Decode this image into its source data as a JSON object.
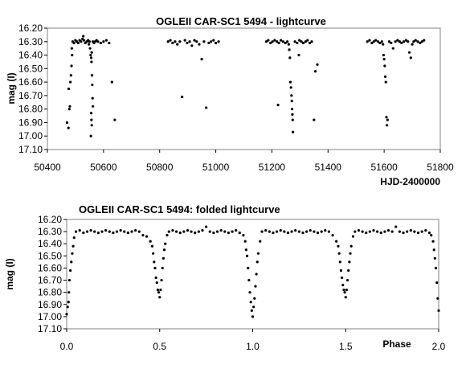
{
  "chart_data": [
    {
      "type": "scatter",
      "title": "OGLEII CAR-SC1 5494 - lightcurve",
      "xlabel": "HJD-2400000",
      "ylabel": "mag (I)",
      "xlim": [
        50400,
        51800
      ],
      "ylim": [
        16.2,
        17.1
      ],
      "y_inverted": true,
      "x_ticks": [
        "50400",
        "50600",
        "50800",
        "51000",
        "51200",
        "51400",
        "51600",
        "51800"
      ],
      "y_ticks": [
        "16.20",
        "16.30",
        "16.40",
        "16.50",
        "16.60",
        "16.70",
        "16.80",
        "16.90",
        "17.00",
        "17.10"
      ],
      "grid": false,
      "marker_color": "#000000",
      "points": [
        [
          50470,
          16.9
        ],
        [
          50475,
          16.94
        ],
        [
          50478,
          16.8
        ],
        [
          50480,
          16.78
        ],
        [
          50476,
          16.65
        ],
        [
          50482,
          16.6
        ],
        [
          50484,
          16.55
        ],
        [
          50486,
          16.48
        ],
        [
          50488,
          16.4
        ],
        [
          50487,
          16.35
        ],
        [
          50490,
          16.3
        ],
        [
          50495,
          16.31
        ],
        [
          50500,
          16.29
        ],
        [
          50505,
          16.3
        ],
        [
          50510,
          16.31
        ],
        [
          50515,
          16.29
        ],
        [
          50520,
          16.3
        ],
        [
          50525,
          16.28
        ],
        [
          50528,
          16.26
        ],
        [
          50530,
          16.29
        ],
        [
          50535,
          16.31
        ],
        [
          50540,
          16.3
        ],
        [
          50545,
          16.29
        ],
        [
          50548,
          16.32
        ],
        [
          50550,
          16.3
        ],
        [
          50552,
          16.35
        ],
        [
          50554,
          16.4
        ],
        [
          50556,
          16.42
        ],
        [
          50557,
          16.45
        ],
        [
          50558,
          16.38
        ],
        [
          50559,
          16.55
        ],
        [
          50560,
          16.62
        ],
        [
          50561,
          16.72
        ],
        [
          50562,
          16.78
        ],
        [
          50556,
          16.83
        ],
        [
          50557,
          16.88
        ],
        [
          50558,
          16.92
        ],
        [
          50555,
          17.0
        ],
        [
          50562,
          16.3
        ],
        [
          50566,
          16.31
        ],
        [
          50570,
          16.3
        ],
        [
          50575,
          16.29
        ],
        [
          50580,
          16.3
        ],
        [
          50590,
          16.31
        ],
        [
          50600,
          16.3
        ],
        [
          50610,
          16.29
        ],
        [
          50620,
          16.31
        ],
        [
          50630,
          16.6
        ],
        [
          50640,
          16.88
        ],
        [
          50830,
          16.3
        ],
        [
          50838,
          16.29
        ],
        [
          50846,
          16.31
        ],
        [
          50855,
          16.3
        ],
        [
          50863,
          16.32
        ],
        [
          50872,
          16.3
        ],
        [
          50880,
          16.71
        ],
        [
          50890,
          16.29
        ],
        [
          50898,
          16.31
        ],
        [
          50907,
          16.3
        ],
        [
          50915,
          16.33
        ],
        [
          50924,
          16.29
        ],
        [
          50932,
          16.3
        ],
        [
          50941,
          16.32
        ],
        [
          50950,
          16.43
        ],
        [
          50958,
          16.3
        ],
        [
          50966,
          16.79
        ],
        [
          50975,
          16.31
        ],
        [
          50983,
          16.3
        ],
        [
          50992,
          16.29
        ],
        [
          51000,
          16.31
        ],
        [
          51010,
          16.3
        ],
        [
          51180,
          16.3
        ],
        [
          51187,
          16.29
        ],
        [
          51195,
          16.31
        ],
        [
          51202,
          16.3
        ],
        [
          51210,
          16.29
        ],
        [
          51218,
          16.3
        ],
        [
          51225,
          16.31
        ],
        [
          51232,
          16.29
        ],
        [
          51240,
          16.3
        ],
        [
          51248,
          16.31
        ],
        [
          51255,
          16.3
        ],
        [
          51260,
          16.32
        ],
        [
          51262,
          16.36
        ],
        [
          51264,
          16.42
        ],
        [
          51266,
          16.6
        ],
        [
          51268,
          16.64
        ],
        [
          51270,
          16.7
        ],
        [
          51271,
          16.74
        ],
        [
          51272,
          16.8
        ],
        [
          51273,
          16.84
        ],
        [
          51274,
          16.88
        ],
        [
          51275,
          16.97
        ],
        [
          51282,
          16.3
        ],
        [
          51290,
          16.31
        ],
        [
          51298,
          16.29
        ],
        [
          51305,
          16.3
        ],
        [
          51312,
          16.31
        ],
        [
          51320,
          16.3
        ],
        [
          51327,
          16.29
        ],
        [
          51335,
          16.31
        ],
        [
          51342,
          16.3
        ],
        [
          51350,
          16.88
        ],
        [
          51355,
          16.52
        ],
        [
          51362,
          16.47
        ],
        [
          51222,
          16.77
        ],
        [
          51296,
          16.4
        ],
        [
          51540,
          16.3
        ],
        [
          51548,
          16.29
        ],
        [
          51556,
          16.31
        ],
        [
          51563,
          16.3
        ],
        [
          51570,
          16.29
        ],
        [
          51578,
          16.3
        ],
        [
          51585,
          16.31
        ],
        [
          51592,
          16.3
        ],
        [
          51596,
          16.32
        ],
        [
          51598,
          16.4
        ],
        [
          51600,
          16.43
        ],
        [
          51602,
          16.48
        ],
        [
          51604,
          16.56
        ],
        [
          51606,
          16.6
        ],
        [
          51608,
          16.86
        ],
        [
          51610,
          16.92
        ],
        [
          51612,
          16.88
        ],
        [
          51618,
          16.3
        ],
        [
          51625,
          16.31
        ],
        [
          51632,
          16.35
        ],
        [
          51640,
          16.3
        ],
        [
          51648,
          16.29
        ],
        [
          51655,
          16.3
        ],
        [
          51662,
          16.31
        ],
        [
          51670,
          16.3
        ],
        [
          51678,
          16.29
        ],
        [
          51685,
          16.3
        ],
        [
          51690,
          16.38
        ],
        [
          51695,
          16.42
        ],
        [
          51700,
          16.32
        ],
        [
          51705,
          16.3
        ],
        [
          51712,
          16.29
        ],
        [
          51720,
          16.3
        ],
        [
          51728,
          16.31
        ],
        [
          51735,
          16.3
        ],
        [
          51742,
          16.29
        ]
      ]
    },
    {
      "type": "scatter",
      "title": "OGLEII CAR-SC1 5494: folded lightcurve",
      "xlabel": "Phase",
      "ylabel": "mag (I)",
      "xlim": [
        0.0,
        2.0
      ],
      "ylim": [
        16.2,
        17.1
      ],
      "y_inverted": true,
      "x_ticks": [
        "0.0",
        "0.5",
        "1.0",
        "1.5",
        "2.0"
      ],
      "y_ticks": [
        "16.20",
        "16.30",
        "16.40",
        "16.50",
        "16.60",
        "16.70",
        "16.80",
        "16.90",
        "17.00",
        "17.10"
      ],
      "grid": false,
      "marker_color": "#000000",
      "points": [
        [
          0.0,
          16.98
        ],
        [
          0.005,
          16.92
        ],
        [
          0.01,
          16.88
        ],
        [
          0.012,
          16.8
        ],
        [
          0.015,
          16.7
        ],
        [
          0.02,
          16.62
        ],
        [
          0.025,
          16.55
        ],
        [
          0.03,
          16.48
        ],
        [
          0.035,
          16.42
        ],
        [
          0.04,
          16.35
        ],
        [
          0.05,
          16.3
        ],
        [
          0.07,
          16.29
        ],
        [
          0.09,
          16.31
        ],
        [
          0.11,
          16.3
        ],
        [
          0.13,
          16.29
        ],
        [
          0.15,
          16.3
        ],
        [
          0.17,
          16.31
        ],
        [
          0.19,
          16.3
        ],
        [
          0.21,
          16.29
        ],
        [
          0.23,
          16.3
        ],
        [
          0.25,
          16.31
        ],
        [
          0.27,
          16.3
        ],
        [
          0.29,
          16.29
        ],
        [
          0.31,
          16.3
        ],
        [
          0.33,
          16.31
        ],
        [
          0.35,
          16.3
        ],
        [
          0.37,
          16.29
        ],
        [
          0.39,
          16.3
        ],
        [
          0.41,
          16.33
        ],
        [
          0.43,
          16.34
        ],
        [
          0.45,
          16.38
        ],
        [
          0.46,
          16.42
        ],
        [
          0.465,
          16.48
        ],
        [
          0.47,
          16.55
        ],
        [
          0.475,
          16.6
        ],
        [
          0.48,
          16.68
        ],
        [
          0.485,
          16.72
        ],
        [
          0.49,
          16.78
        ],
        [
          0.495,
          16.8
        ],
        [
          0.5,
          16.84
        ],
        [
          0.505,
          16.78
        ],
        [
          0.51,
          16.7
        ],
        [
          0.515,
          16.6
        ],
        [
          0.52,
          16.52
        ],
        [
          0.525,
          16.45
        ],
        [
          0.53,
          16.4
        ],
        [
          0.54,
          16.33
        ],
        [
          0.55,
          16.3
        ],
        [
          0.57,
          16.29
        ],
        [
          0.59,
          16.3
        ],
        [
          0.61,
          16.31
        ],
        [
          0.63,
          16.3
        ],
        [
          0.65,
          16.29
        ],
        [
          0.67,
          16.3
        ],
        [
          0.69,
          16.31
        ],
        [
          0.71,
          16.3
        ],
        [
          0.73,
          16.29
        ],
        [
          0.75,
          16.26
        ],
        [
          0.77,
          16.3
        ],
        [
          0.79,
          16.31
        ],
        [
          0.81,
          16.3
        ],
        [
          0.83,
          16.29
        ],
        [
          0.85,
          16.3
        ],
        [
          0.87,
          16.31
        ],
        [
          0.89,
          16.3
        ],
        [
          0.91,
          16.29
        ],
        [
          0.93,
          16.31
        ],
        [
          0.95,
          16.33
        ],
        [
          0.96,
          16.38
        ],
        [
          0.965,
          16.45
        ],
        [
          0.97,
          16.5
        ],
        [
          0.975,
          16.6
        ],
        [
          0.98,
          16.7
        ],
        [
          0.985,
          16.8
        ],
        [
          0.99,
          16.88
        ],
        [
          0.995,
          16.95
        ],
        [
          1.0,
          17.0
        ],
        [
          1.005,
          16.92
        ],
        [
          1.01,
          16.85
        ],
        [
          1.015,
          16.75
        ],
        [
          1.02,
          16.65
        ],
        [
          1.025,
          16.55
        ],
        [
          1.03,
          16.48
        ],
        [
          1.04,
          16.38
        ],
        [
          1.05,
          16.3
        ],
        [
          1.07,
          16.29
        ],
        [
          1.09,
          16.3
        ],
        [
          1.11,
          16.31
        ],
        [
          1.13,
          16.3
        ],
        [
          1.15,
          16.29
        ],
        [
          1.17,
          16.3
        ],
        [
          1.19,
          16.31
        ],
        [
          1.21,
          16.3
        ],
        [
          1.23,
          16.29
        ],
        [
          1.25,
          16.3
        ],
        [
          1.27,
          16.31
        ],
        [
          1.29,
          16.3
        ],
        [
          1.31,
          16.29
        ],
        [
          1.33,
          16.3
        ],
        [
          1.35,
          16.31
        ],
        [
          1.37,
          16.3
        ],
        [
          1.39,
          16.29
        ],
        [
          1.41,
          16.3
        ],
        [
          1.43,
          16.33
        ],
        [
          1.45,
          16.38
        ],
        [
          1.46,
          16.42
        ],
        [
          1.465,
          16.48
        ],
        [
          1.47,
          16.55
        ],
        [
          1.475,
          16.62
        ],
        [
          1.48,
          16.68
        ],
        [
          1.485,
          16.74
        ],
        [
          1.49,
          16.78
        ],
        [
          1.495,
          16.8
        ],
        [
          1.5,
          16.84
        ],
        [
          1.505,
          16.78
        ],
        [
          1.51,
          16.7
        ],
        [
          1.515,
          16.62
        ],
        [
          1.52,
          16.55
        ],
        [
          1.525,
          16.48
        ],
        [
          1.53,
          16.42
        ],
        [
          1.54,
          16.34
        ],
        [
          1.55,
          16.3
        ],
        [
          1.57,
          16.29
        ],
        [
          1.59,
          16.3
        ],
        [
          1.61,
          16.31
        ],
        [
          1.63,
          16.3
        ],
        [
          1.65,
          16.29
        ],
        [
          1.67,
          16.3
        ],
        [
          1.69,
          16.31
        ],
        [
          1.71,
          16.3
        ],
        [
          1.73,
          16.29
        ],
        [
          1.75,
          16.3
        ],
        [
          1.77,
          16.26
        ],
        [
          1.79,
          16.3
        ],
        [
          1.81,
          16.31
        ],
        [
          1.83,
          16.3
        ],
        [
          1.85,
          16.29
        ],
        [
          1.87,
          16.3
        ],
        [
          1.89,
          16.31
        ],
        [
          1.91,
          16.3
        ],
        [
          1.93,
          16.29
        ],
        [
          1.95,
          16.31
        ],
        [
          1.96,
          16.33
        ],
        [
          1.97,
          16.38
        ],
        [
          1.975,
          16.45
        ],
        [
          1.98,
          16.52
        ],
        [
          1.985,
          16.6
        ],
        [
          1.99,
          16.72
        ],
        [
          1.995,
          16.85
        ],
        [
          2.0,
          16.95
        ]
      ]
    }
  ]
}
